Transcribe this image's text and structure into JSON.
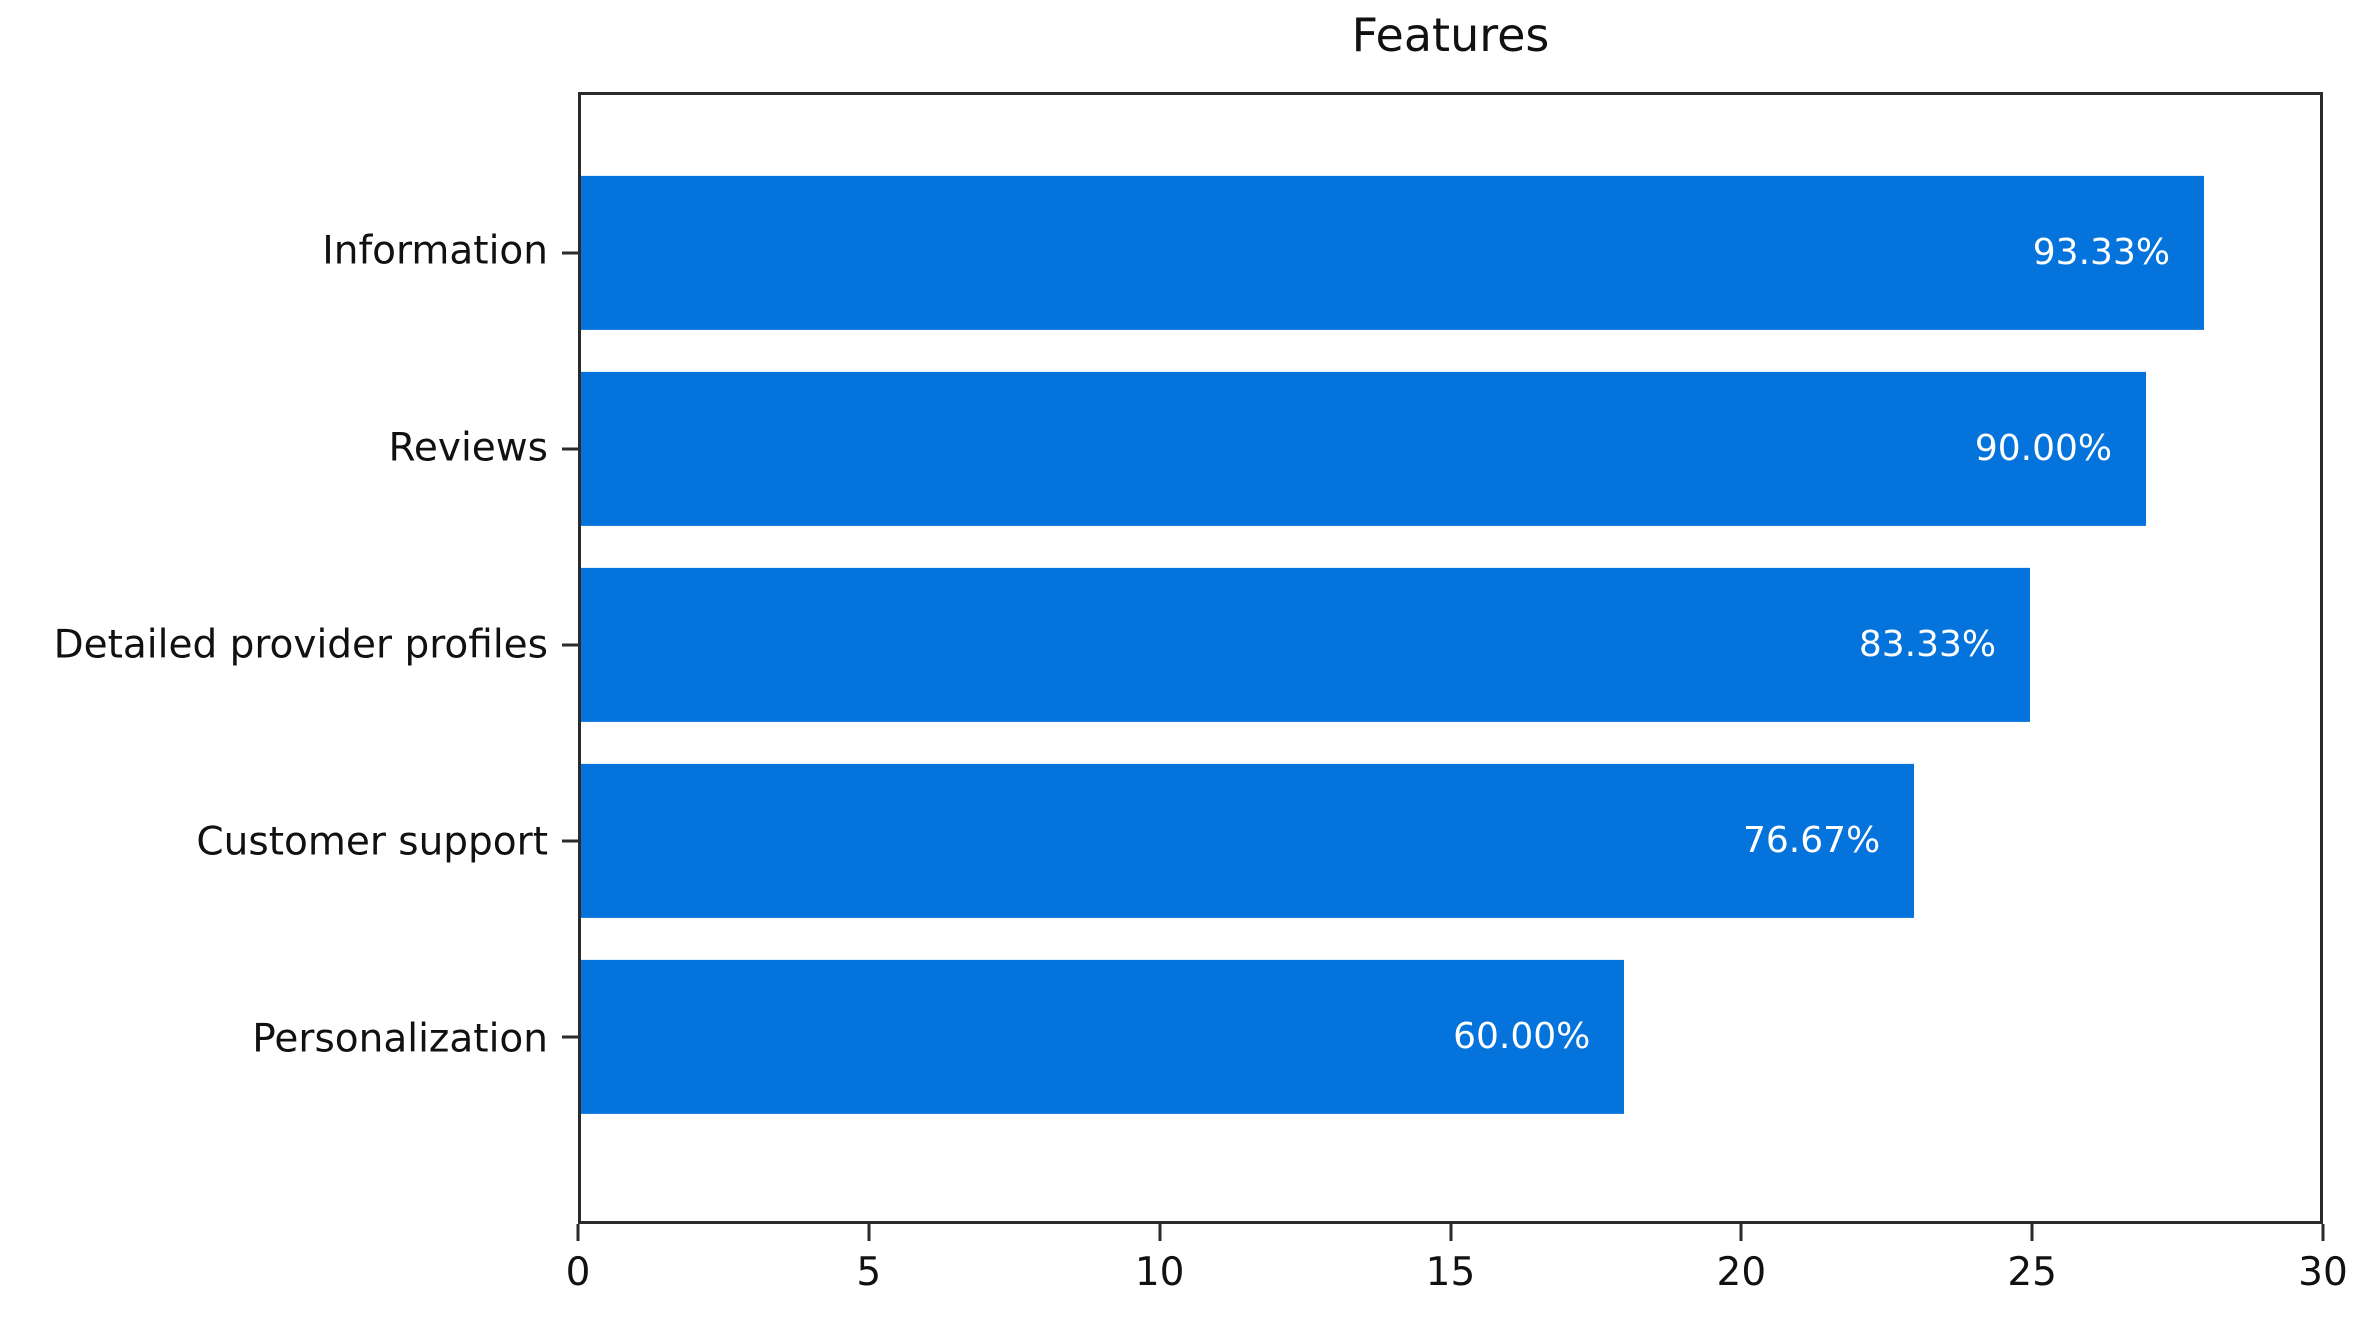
{
  "chart_data": {
    "type": "bar",
    "orientation": "horizontal",
    "title": "Features",
    "categories": [
      "Information",
      "Reviews",
      "Detailed provider profiles",
      "Customer support",
      "Personalization"
    ],
    "values": [
      28,
      27,
      25,
      23,
      18
    ],
    "value_labels": [
      "93.33%",
      "90.00%",
      "83.33%",
      "76.67%",
      "60.00%"
    ],
    "xlim": [
      0,
      30
    ],
    "x_ticks": [
      0,
      5,
      10,
      15,
      20,
      25,
      30
    ],
    "x_tick_labels": [
      "0",
      "5",
      "10",
      "15",
      "20",
      "25",
      "30"
    ],
    "xlabel": "",
    "ylabel": "",
    "grid": false,
    "legend": null,
    "bar_color": "#0473dc",
    "value_label_color": "#ffffff",
    "axis_color": "#2b2b2b",
    "background_color": "#ffffff"
  }
}
